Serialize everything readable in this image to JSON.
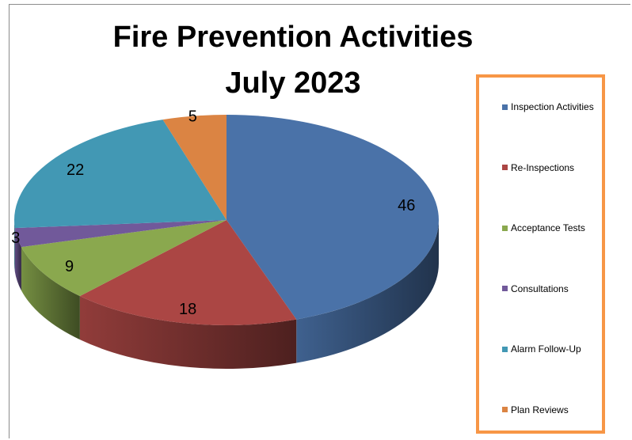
{
  "chart_data": {
    "type": "pie",
    "title_line1": "Fire Prevention Activities",
    "title_line2": "July 2023",
    "legend_position": "right",
    "categories": [
      "Inspection Activities",
      "Re-Inspections",
      "Acceptance Tests",
      "Consultations",
      "Alarm Follow-Up",
      "Plan Reviews"
    ],
    "values": [
      46,
      18,
      9,
      3,
      22,
      5
    ],
    "labels": [
      "46",
      "18",
      "9",
      "3",
      "22",
      "5"
    ],
    "colors": [
      "#4a72a8",
      "#ab4644",
      "#8aa84e",
      "#71599a",
      "#4298b4",
      "#db8443"
    ],
    "style": "3d-exploded-none"
  }
}
